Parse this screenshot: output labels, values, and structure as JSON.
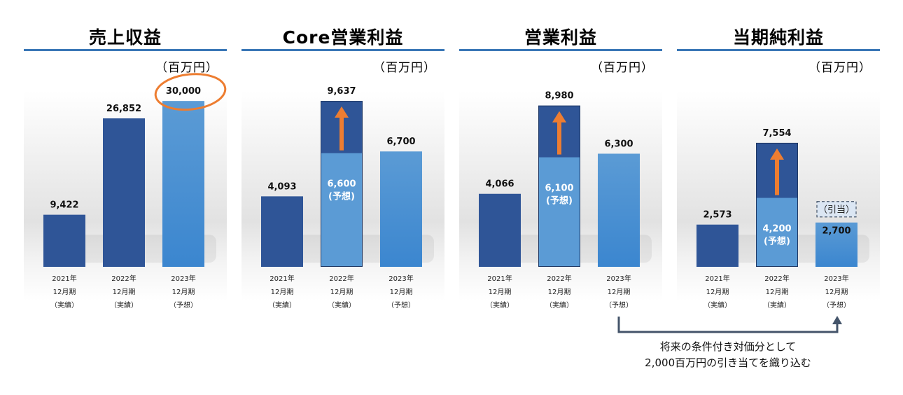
{
  "unit_label": "（百万円）",
  "note": {
    "line1": "将来の条件付き対価分として",
    "line2": "2,000百万円の引き当てを織り込む"
  },
  "colors": {
    "actual": "#2f5597",
    "forecast": "#5b9bd5",
    "arrow": "#ed7d31",
    "title_rule": "#3a77b6"
  },
  "chart_data": [
    {
      "type": "bar",
      "title": "売上収益",
      "unit": "（百万円）",
      "categories": [
        [
          "2021年",
          "12月期",
          "（実績）"
        ],
        [
          "2022年",
          "12月期",
          "（実績）"
        ],
        [
          "2023年",
          "12月期",
          "（予想）"
        ]
      ],
      "values": [
        9422,
        26852,
        30000
      ],
      "value_labels": [
        "9,422",
        "26,852",
        "30,000"
      ],
      "kind": [
        "actual",
        "actual",
        "forecast"
      ],
      "highlight_index": 2,
      "ylim": [
        0,
        38000
      ]
    },
    {
      "type": "bar",
      "title": "Core営業利益",
      "unit": "（百万円）",
      "categories": [
        [
          "2021年",
          "12月期",
          "（実績）"
        ],
        [
          "2022年",
          "12月期",
          "（実績）"
        ],
        [
          "2023年",
          "12月期",
          "（予想）"
        ]
      ],
      "values": [
        4093,
        9637,
        6700
      ],
      "value_labels": [
        "4,093",
        "9,637",
        "6,700"
      ],
      "kind": [
        "actual",
        "actual",
        "forecast"
      ],
      "prior_forecast": {
        "index": 1,
        "value": 6600,
        "label": "6,600",
        "sublabel": "(予想)"
      },
      "ylim": [
        0,
        12200
      ]
    },
    {
      "type": "bar",
      "title": "営業利益",
      "unit": "（百万円）",
      "categories": [
        [
          "2021年",
          "12月期",
          "（実績）"
        ],
        [
          "2022年",
          "12月期",
          "（実績）"
        ],
        [
          "2023年",
          "12月期",
          "（予想）"
        ]
      ],
      "values": [
        4066,
        8980,
        6300
      ],
      "value_labels": [
        "4,066",
        "8,980",
        "6,300"
      ],
      "kind": [
        "actual",
        "actual",
        "forecast"
      ],
      "prior_forecast": {
        "index": 1,
        "value": 6100,
        "label": "6,100",
        "sublabel": "(予想)"
      },
      "ylim": [
        0,
        11700
      ]
    },
    {
      "type": "bar",
      "title": "当期純利益",
      "unit": "（百万円）",
      "categories": [
        [
          "2021年",
          "12月期",
          "（実績）"
        ],
        [
          "2022年",
          "12月期",
          "（実績）"
        ],
        [
          "2023年",
          "12月期",
          "（予想）"
        ]
      ],
      "values": [
        2573,
        7554,
        2700
      ],
      "value_labels": [
        "2,573",
        "7,554",
        "2,700"
      ],
      "kind": [
        "actual",
        "actual",
        "forecast"
      ],
      "prior_forecast": {
        "index": 1,
        "value": 4200,
        "label": "4,200",
        "sublabel": "(予想)"
      },
      "callout": {
        "index": 2,
        "label": "（引当）"
      },
      "ylim": [
        0,
        12800
      ]
    }
  ]
}
